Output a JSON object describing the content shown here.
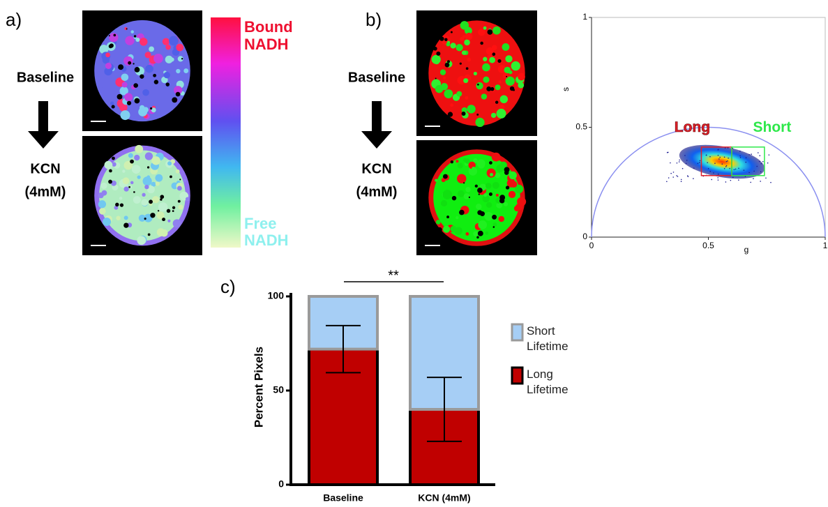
{
  "figure": {
    "panel_a": {
      "label": "a)",
      "before": "Baseline",
      "after": [
        "KCN",
        "(4mM)"
      ],
      "scale_top": [
        "Bound",
        "NADH"
      ],
      "scale_bottom": [
        "Free",
        "NADH"
      ]
    },
    "panel_b": {
      "label": "b)",
      "before": "Baseline",
      "after": [
        "KCN",
        "(4mM)"
      ]
    },
    "panel_c": {
      "label": "c)"
    }
  },
  "chart_data": [
    {
      "type": "phasor",
      "x_label": "g",
      "y_label": "s",
      "xlim": [
        0,
        1
      ],
      "ylim": [
        0,
        1
      ],
      "xticks": [
        0,
        0.5,
        1
      ],
      "yticks": [
        0,
        0.5,
        1
      ],
      "curve_color": "#8a8ff0",
      "regions": [
        {
          "label": "Long",
          "color": "#e0202a",
          "g": [
            0.47,
            0.6
          ],
          "s": [
            0.28,
            0.41
          ]
        },
        {
          "label": "Short",
          "color": "#2ee84a",
          "g": [
            0.6,
            0.74
          ],
          "s": [
            0.28,
            0.41
          ]
        }
      ]
    },
    {
      "type": "stacked-bar",
      "y_label": "Percent Pixels",
      "categories": [
        "Baseline",
        "KCN (4mM)"
      ],
      "ylim": [
        0,
        100
      ],
      "yticks": [
        0,
        50,
        100
      ],
      "significance": "**",
      "series": [
        {
          "name": "Long Lifetime",
          "color": "#c00000",
          "values": [
            72,
            40
          ],
          "errors": [
            12.5,
            17
          ]
        },
        {
          "name": "Short Lifetime",
          "color": "#a6cef5",
          "values": [
            28,
            60
          ]
        }
      ]
    }
  ]
}
